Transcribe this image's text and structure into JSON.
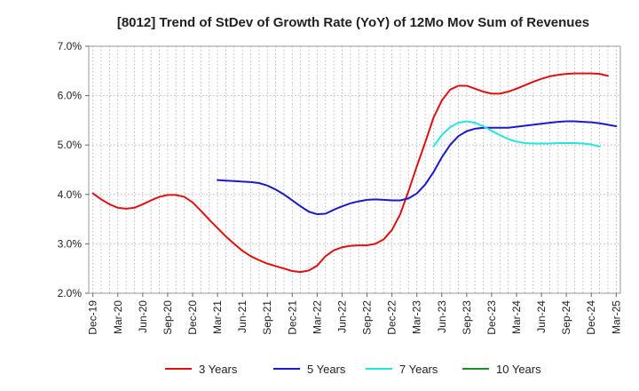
{
  "chart_data": {
    "type": "line",
    "title": "[8012]  Trend of StDev of Growth Rate (YoY) of 12Mo Mov Sum of Revenues",
    "xlabel": "",
    "ylabel": "",
    "ylim": [
      2.0,
      7.0
    ],
    "yticks": [
      2.0,
      3.0,
      4.0,
      5.0,
      6.0,
      7.0
    ],
    "ytick_labels": [
      "2.0%",
      "3.0%",
      "4.0%",
      "5.0%",
      "6.0%",
      "7.0%"
    ],
    "x_count": 64,
    "x_tick_labels": [
      "Dec-19",
      "Mar-20",
      "Jun-20",
      "Sep-20",
      "Dec-20",
      "Mar-21",
      "Jun-21",
      "Sep-21",
      "Dec-21",
      "Mar-22",
      "Jun-22",
      "Sep-22",
      "Dec-22",
      "Mar-23",
      "Jun-23",
      "Sep-23",
      "Dec-23",
      "Mar-24",
      "Jun-24",
      "Sep-24",
      "Dec-24",
      "Mar-25"
    ],
    "grid": true,
    "legend_position": "bottom",
    "series": [
      {
        "name": "3 Years",
        "color": "#dd1111",
        "start_index": 0,
        "values": [
          4.02,
          3.9,
          3.8,
          3.73,
          3.71,
          3.73,
          3.8,
          3.88,
          3.95,
          3.99,
          3.99,
          3.95,
          3.84,
          3.67,
          3.49,
          3.32,
          3.15,
          3.0,
          2.86,
          2.75,
          2.67,
          2.6,
          2.55,
          2.5,
          2.45,
          2.43,
          2.46,
          2.56,
          2.75,
          2.87,
          2.93,
          2.96,
          2.97,
          2.97,
          3.0,
          3.09,
          3.28,
          3.6,
          4.07,
          4.57,
          5.05,
          5.55,
          5.9,
          6.12,
          6.2,
          6.2,
          6.14,
          6.08,
          6.04,
          6.04,
          6.08,
          6.14,
          6.21,
          6.28,
          6.34,
          6.39,
          6.42,
          6.44,
          6.45,
          6.45,
          6.45,
          6.44,
          6.4
        ]
      },
      {
        "name": "5 Years",
        "color": "#1a1acc",
        "start_index": 15,
        "values": [
          4.29,
          4.28,
          4.27,
          4.26,
          4.25,
          4.23,
          4.18,
          4.1,
          4.0,
          3.88,
          3.76,
          3.65,
          3.6,
          3.61,
          3.69,
          3.76,
          3.82,
          3.86,
          3.89,
          3.9,
          3.89,
          3.88,
          3.88,
          3.92,
          4.02,
          4.2,
          4.45,
          4.75,
          5.0,
          5.18,
          5.28,
          5.33,
          5.35,
          5.35,
          5.35,
          5.35,
          5.37,
          5.39,
          5.41,
          5.43,
          5.45,
          5.47,
          5.48,
          5.48,
          5.47,
          5.46,
          5.44,
          5.41,
          5.38
        ]
      },
      {
        "name": "7 Years",
        "color": "#22e5e5",
        "start_index": 41,
        "values": [
          4.97,
          5.2,
          5.36,
          5.45,
          5.48,
          5.45,
          5.38,
          5.29,
          5.2,
          5.12,
          5.07,
          5.04,
          5.03,
          5.03,
          5.03,
          5.04,
          5.04,
          5.04,
          5.03,
          5.01,
          4.97
        ]
      },
      {
        "name": "10 Years",
        "color": "#228b22",
        "start_index": 0,
        "values": []
      }
    ]
  }
}
